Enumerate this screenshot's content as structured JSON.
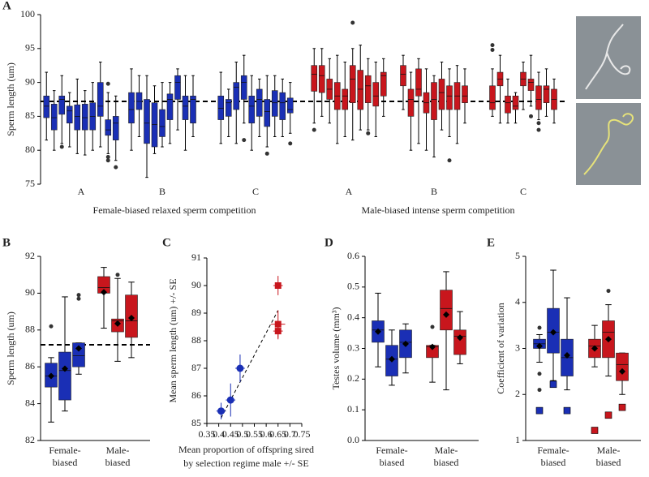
{
  "chart_data": [
    {
      "type": "box",
      "panel_label": "A",
      "ylabel": "Sperm length (um)",
      "ylim": [
        75,
        100
      ],
      "yticks": [
        75,
        80,
        85,
        90,
        95,
        100
      ],
      "hline": 87.2,
      "supergroups": [
        "Female-biased relaxed sperm competition",
        "Male-biased intense sperm competition"
      ],
      "groups": [
        {
          "label": "A",
          "color": "#1a2fb5",
          "boxes": [
            {
              "stats": [
                81.5,
                84.8,
                86.5,
                88,
                91.5
              ]
            },
            {
              "stats": [
                80,
                83,
                84.8,
                86.8,
                88.8
              ]
            },
            {
              "stats": [
                81,
                85.3,
                87.5,
                88,
                91
              ],
              "outliers": [
                80.5
              ]
            },
            {
              "stats": [
                80.5,
                84,
                85.8,
                86.5,
                88.5
              ]
            },
            {
              "stats": [
                79.5,
                83,
                85,
                86.7,
                90.5
              ]
            },
            {
              "stats": [
                79.3,
                83,
                84.8,
                86.8,
                88.8
              ]
            },
            {
              "stats": [
                80,
                83,
                85,
                87,
                90
              ]
            },
            {
              "stats": [
                80.5,
                85,
                86.5,
                90,
                93
              ]
            },
            {
              "stats": [
                79.5,
                82.2,
                83,
                84.5,
                88.5
              ],
              "outliers": [
                78.5,
                79,
                89.8
              ]
            },
            {
              "stats": [
                78.5,
                81.5,
                84,
                85,
                88
              ],
              "outliers": [
                77.5
              ]
            }
          ]
        },
        {
          "label": "B",
          "color": "#1a2fb5",
          "boxes": [
            {
              "stats": [
                80,
                84,
                86,
                88.5,
                92
              ]
            },
            {
              "stats": [
                82,
                86,
                87.2,
                88.5,
                91
              ]
            },
            {
              "stats": [
                76,
                81,
                84,
                87.5,
                91
              ]
            },
            {
              "stats": [
                79.5,
                80.5,
                83.8,
                87,
                89.5
              ]
            },
            {
              "stats": [
                80.5,
                82,
                83.5,
                86,
                90
              ]
            },
            {
              "stats": [
                81,
                84.5,
                87.5,
                88.3,
                90
              ]
            },
            {
              "stats": [
                83,
                87.5,
                90,
                91,
                92
              ]
            },
            {
              "stats": [
                80,
                84.5,
                86.5,
                88,
                91
              ]
            },
            {
              "stats": [
                82,
                84,
                87.5,
                88,
                91
              ]
            }
          ]
        },
        {
          "label": "C",
          "color": "#1a2fb5",
          "boxes": [
            {
              "stats": [
                81,
                84.5,
                86.2,
                88,
                91.5
              ]
            },
            {
              "stats": [
                82,
                85,
                87,
                87.5,
                89
              ]
            },
            {
              "stats": [
                81,
                86,
                89.3,
                90,
                93
              ]
            },
            {
              "stats": [
                84,
                87.5,
                90,
                91,
                94
              ],
              "outliers": [
                81.5
              ]
            },
            {
              "stats": [
                80,
                84,
                86.5,
                88,
                91
              ]
            },
            {
              "stats": [
                82,
                85,
                87.5,
                89,
                90.5
              ]
            },
            {
              "stats": [
                80.5,
                83.5,
                85.7,
                87.5,
                91
              ],
              "outliers": [
                79.5
              ]
            },
            {
              "stats": [
                82,
                85,
                87,
                88.8,
                91
              ]
            },
            {
              "stats": [
                82,
                84.5,
                87,
                88.5,
                90.5
              ]
            },
            {
              "stats": [
                82.5,
                85.5,
                86,
                87.7,
                90
              ],
              "outliers": [
                81
              ]
            }
          ]
        },
        {
          "label": "A",
          "color": "#c8161d",
          "boxes": [
            {
              "stats": [
                84,
                88.7,
                91.2,
                92.5,
                95
              ],
              "outliers": [
                83
              ]
            },
            {
              "stats": [
                85,
                88.5,
                91,
                92.5,
                95
              ]
            },
            {
              "stats": [
                84,
                87.5,
                89,
                90.5,
                93.5
              ]
            },
            {
              "stats": [
                81,
                86,
                88,
                90,
                94
              ]
            },
            {
              "stats": [
                82,
                86,
                88,
                89,
                93
              ]
            },
            {
              "stats": [
                81.5,
                87,
                90.5,
                92.5,
                95
              ],
              "outliers": [
                98.8
              ]
            },
            {
              "stats": [
                83,
                86,
                89,
                91.8,
                95.5
              ]
            },
            {
              "stats": [
                83,
                87,
                89.5,
                91,
                93.5
              ],
              "outliers": [
                82.5
              ]
            },
            {
              "stats": [
                82,
                86.5,
                88,
                90,
                93
              ]
            },
            {
              "stats": [
                85,
                88,
                91,
                91.5,
                93.5
              ]
            }
          ]
        },
        {
          "label": "B",
          "color": "#c8161d",
          "boxes": [
            {
              "stats": [
                86,
                89.5,
                91.2,
                92.5,
                94
              ]
            },
            {
              "stats": [
                80,
                85,
                87.5,
                89,
                91.5
              ]
            },
            {
              "stats": [
                81,
                88,
                89,
                92,
                93.5
              ]
            },
            {
              "stats": [
                80,
                85.5,
                87,
                88.5,
                92
              ]
            },
            {
              "stats": [
                79,
                84.5,
                87.5,
                90,
                91
              ]
            },
            {
              "stats": [
                83,
                86,
                88.5,
                90.5,
                93
              ]
            },
            {
              "stats": [
                82,
                86,
                88,
                89.5,
                92
              ],
              "outliers": [
                78.5
              ]
            },
            {
              "stats": [
                81,
                86,
                88,
                90,
                92.5
              ]
            },
            {
              "stats": [
                84,
                87,
                88,
                89.5,
                92
              ]
            }
          ]
        },
        {
          "label": "C",
          "color": "#c8161d",
          "boxes": [
            {
              "stats": [
                85,
                86,
                87,
                89.5,
                92
              ],
              "outliers": [
                95.5,
                94.8
              ]
            },
            {
              "stats": [
                84,
                89.5,
                90.5,
                91.5,
                94
              ]
            },
            {
              "stats": [
                84,
                85.5,
                87,
                88,
                90.5
              ]
            },
            {
              "stats": [
                84,
                86,
                86.5,
                88,
                88.5
              ]
            },
            {
              "stats": [
                86,
                89.5,
                90.5,
                91.5,
                93
              ]
            },
            {
              "stats": [
                86.5,
                88.8,
                90,
                90.5,
                94
              ],
              "outliers": [
                85
              ]
            },
            {
              "stats": [
                84.5,
                86,
                87.5,
                89.5,
                91.5
              ],
              "outliers": [
                84,
                83
              ]
            },
            {
              "stats": [
                85,
                87,
                89,
                89.5,
                92
              ]
            },
            {
              "stats": [
                84,
                86,
                87.5,
                89,
                90.5
              ]
            }
          ]
        }
      ]
    },
    {
      "type": "box",
      "panel_label": "B",
      "ylabel": "Sperm length (um)",
      "ylim": [
        82,
        92
      ],
      "yticks": [
        82,
        84,
        86,
        88,
        90,
        92
      ],
      "hline": 87.2,
      "groups": [
        {
          "label_lines": [
            "Female-",
            "biased"
          ],
          "color": "#1a2fb5",
          "boxes": [
            {
              "stats": [
                83,
                84.9,
                85.5,
                86.2,
                86.5
              ],
              "mean": 85.5,
              "outliers": [
                88.2
              ]
            },
            {
              "stats": [
                83.6,
                84.2,
                85.8,
                86.8,
                89.8
              ],
              "mean": 85.9
            },
            {
              "stats": [
                85.6,
                86,
                86.6,
                87.3,
                87.3
              ],
              "mean": 87,
              "outliers": [
                89.7,
                89.9
              ]
            }
          ]
        },
        {
          "label_lines": [
            "Male-",
            "biased"
          ],
          "color": "#c8161d",
          "boxes": [
            {
              "stats": [
                88.1,
                90,
                90.3,
                90.9,
                91.4
              ],
              "mean": 90.05
            },
            {
              "stats": [
                86.3,
                87.9,
                88.5,
                88.6,
                90.8
              ],
              "mean": 88.35,
              "outliers": [
                91
              ]
            },
            {
              "stats": [
                86.5,
                87.6,
                88.5,
                89.9,
                90.6
              ],
              "mean": 88.65
            }
          ]
        }
      ]
    },
    {
      "type": "scatter",
      "panel_label": "C",
      "ylabel": "Mean sperm length (um) +/- SE",
      "xlabel_lines": [
        "Mean proportion of offspring sired",
        "by selection regime male +/- SE"
      ],
      "xlim": [
        0.35,
        0.75
      ],
      "xticks": [
        0.35,
        0.4,
        0.45,
        0.5,
        0.55,
        0.6,
        0.65,
        0.7,
        0.75
      ],
      "ylim": [
        85,
        91
      ],
      "yticks": [
        85,
        86,
        87,
        88,
        89,
        90,
        91
      ],
      "trendline": {
        "x": [
          0.41,
          0.65
        ],
        "y": [
          85.2,
          89.1
        ]
      },
      "series": [
        {
          "color": "#1a2fb5",
          "marker": "circle",
          "x": [
            0.41,
            0.45,
            0.49
          ],
          "y": [
            85.45,
            85.85,
            87.0
          ],
          "xerr": [
            0.02,
            0.02,
            0.02
          ],
          "yerr": [
            0.3,
            0.6,
            0.5
          ]
        },
        {
          "color": "#c8161d",
          "marker": "square",
          "x": [
            0.65,
            0.65,
            0.65
          ],
          "y": [
            90.0,
            88.6,
            88.35
          ],
          "xerr": [
            0.02,
            0.03,
            0.02
          ],
          "yerr": [
            0.35,
            0.5,
            0.3
          ]
        }
      ]
    },
    {
      "type": "box",
      "panel_label": "D",
      "ylabel": "Testes volume (mm³)",
      "ylim": [
        0,
        0.6
      ],
      "yticks": [
        {
          "value": 0,
          "label": "0.0"
        },
        0.1,
        0.2,
        0.3,
        0.4,
        0.5,
        0.6
      ],
      "groups": [
        {
          "label_lines": [
            "Female-",
            "biased"
          ],
          "color": "#1a2fb5",
          "boxes": [
            {
              "stats": [
                0.24,
                0.32,
                0.36,
                0.39,
                0.48
              ],
              "mean": 0.355
            },
            {
              "stats": [
                0.18,
                0.21,
                0.265,
                0.31,
                0.36
              ],
              "mean": 0.265
            },
            {
              "stats": [
                0.22,
                0.27,
                0.32,
                0.36,
                0.38
              ],
              "mean": 0.315
            }
          ]
        },
        {
          "label_lines": [
            "Male-",
            "biased"
          ],
          "color": "#c8161d",
          "boxes": [
            {
              "stats": [
                0.19,
                0.27,
                0.305,
                0.31,
                0.31
              ],
              "mean": 0.305,
              "outliers": [
                0.37
              ]
            },
            {
              "stats": [
                0.165,
                0.36,
                0.43,
                0.49,
                0.55
              ],
              "mean": 0.41
            },
            {
              "stats": [
                0.25,
                0.28,
                0.34,
                0.36,
                0.42
              ],
              "mean": 0.335
            }
          ]
        }
      ]
    },
    {
      "type": "box",
      "panel_label": "E",
      "ylabel": "Coefficient of variation",
      "ylim": [
        1,
        5
      ],
      "yticks": [
        1,
        2,
        3,
        4,
        5
      ],
      "groups": [
        {
          "label_lines": [
            "Female-",
            "biased"
          ],
          "color": "#1a2fb5",
          "boxes": [
            {
              "stats": [
                2.7,
                3.0,
                3.1,
                3.2,
                3.3
              ],
              "mean": 3.05,
              "outliers": [
                3.45,
                2.45,
                2.1
              ],
              "square": 1.65
            },
            {
              "stats": [
                2.3,
                2.9,
                3.35,
                3.87,
                4.7
              ],
              "mean": 3.35,
              "square": 2.22
            },
            {
              "stats": [
                2.1,
                2.4,
                2.8,
                3.2,
                4.1
              ],
              "mean": 2.85,
              "square": 1.65
            }
          ]
        },
        {
          "label_lines": [
            "Male-",
            "biased"
          ],
          "color": "#c8161d",
          "boxes": [
            {
              "stats": [
                2.6,
                2.8,
                3.05,
                3.2,
                3.5
              ],
              "mean": 3.0,
              "square": 1.22
            },
            {
              "stats": [
                2.4,
                2.8,
                3.35,
                3.6,
                3.95
              ],
              "mean": 3.2,
              "outliers": [
                4.25
              ],
              "square": 1.55
            },
            {
              "stats": [
                2.0,
                2.3,
                2.65,
                2.9,
                2.9
              ],
              "mean": 2.5,
              "square": 1.72
            }
          ]
        }
      ]
    }
  ]
}
